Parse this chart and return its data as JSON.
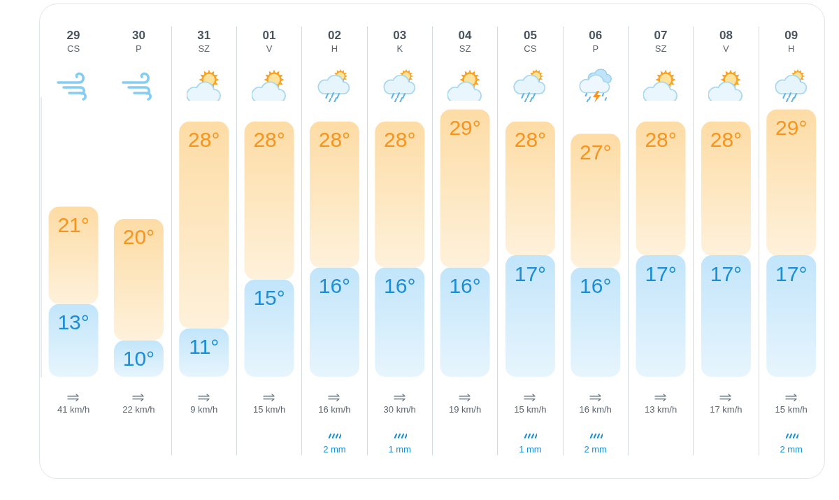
{
  "chart_data": [
    {
      "type": "bar",
      "stacked": true,
      "categories": [
        "29\nCS",
        "30\nP",
        "31\nSZ",
        "01\nV",
        "02\nH",
        "03\nK",
        "04\nSZ",
        "05\nCS",
        "06\nP",
        "07\nSZ",
        "08\nV",
        "09\nH"
      ],
      "ylim": [
        7,
        30
      ],
      "tick_labels": "x",
      "grid": "x",
      "series": [
        {
          "color": "#c2e5fa",
          "values": [
            13,
            10,
            11,
            15,
            16,
            16,
            16,
            17,
            16,
            17,
            17,
            17
          ],
          "value_labels": [
            "13°",
            "10°",
            "11°",
            "15°",
            "16°",
            "16°",
            "16°",
            "17°",
            "16°",
            "17°",
            "17°",
            "17°"
          ]
        },
        {
          "color": "#fddca5",
          "values": [
            8,
            10,
            17,
            13,
            12,
            12,
            13,
            11,
            11,
            11,
            11,
            12
          ]
        }
      ],
      "totals": [
        "21°",
        "20°",
        "28°",
        "28°",
        "28°",
        "28°",
        "29°",
        "28°",
        "27°",
        "28°",
        "28°",
        "29°"
      ]
    },
    {
      "type": "other",
      "color": "#5b6570",
      "values": [
        41,
        22,
        9,
        15,
        16,
        30,
        19,
        15,
        16,
        13,
        17,
        15
      ],
      "value_labels": [
        "41 km/h",
        "22 km/h",
        "9 km/h",
        "15 km/h",
        "16 km/h",
        "30 km/h",
        "19 km/h",
        "15 km/h",
        "16 km/h",
        "13 km/h",
        "17 km/h",
        "15 km/h"
      ]
    },
    {
      "type": "other",
      "color": "#1b8ed6",
      "values": [
        null,
        null,
        null,
        null,
        2,
        1,
        null,
        1,
        2,
        null,
        null,
        2
      ],
      "value_labels": [
        null,
        null,
        null,
        null,
        "2 mm",
        "1 mm",
        null,
        "1 mm",
        "2 mm",
        null,
        null,
        "2 mm"
      ]
    }
  ]
}
